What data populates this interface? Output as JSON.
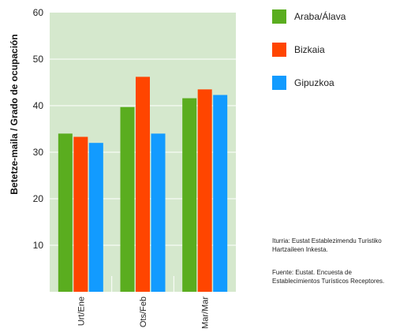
{
  "chart_data": {
    "type": "bar",
    "categories": [
      "Urt/Ene",
      "Ots/Feb",
      "Mar/Mar"
    ],
    "series": [
      {
        "name": "Araba/Álava",
        "color": "#5aad1f",
        "values": [
          34,
          39.7,
          41.6
        ]
      },
      {
        "name": "Bizkaia",
        "color": "#ff4500",
        "values": [
          33.3,
          46.2,
          43.5
        ]
      },
      {
        "name": "Gipuzkoa",
        "color": "#129bff",
        "values": [
          32,
          34,
          42.3
        ]
      }
    ],
    "ylabel": "Betetze-maila / Grado de ocupación",
    "ylim": [
      0,
      60
    ],
    "yticks": [
      10,
      20,
      30,
      40,
      50,
      60
    ],
    "grid": true,
    "legend_position": "right",
    "plot_background": "#d5e8cd"
  },
  "notes": {
    "line1": "Iturria: Eustat Establezimendu Turistiko",
    "line2": "Hartzaileen Inkesta.",
    "line3": "Fuente: Eustat. Encuesta de",
    "line4": "Establecimientos Turísticos Receptores."
  }
}
